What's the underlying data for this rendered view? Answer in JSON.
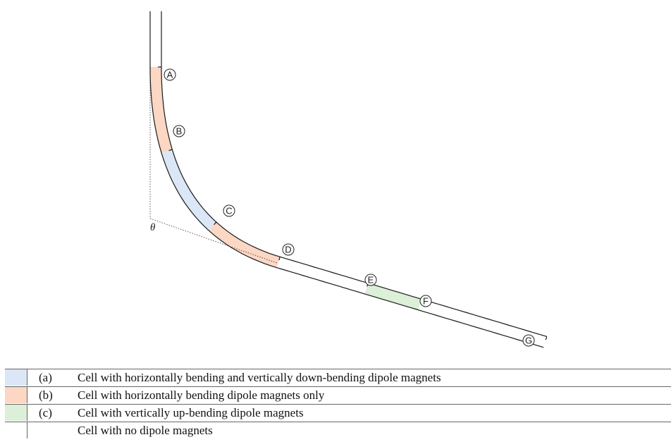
{
  "colors": {
    "cell_a": "#dbe7f6",
    "cell_b": "#fbd7c4",
    "cell_c": "#dcefd8",
    "cell_none": "#ffffff",
    "line": "#1a1a1a"
  },
  "points": [
    {
      "id": "A",
      "label": "A"
    },
    {
      "id": "B",
      "label": "B"
    },
    {
      "id": "C",
      "label": "C"
    },
    {
      "id": "D",
      "label": "D"
    },
    {
      "id": "E",
      "label": "E"
    },
    {
      "id": "F",
      "label": "F"
    },
    {
      "id": "G",
      "label": "G"
    }
  ],
  "angle_label": "θ",
  "legend": [
    {
      "swatch": "cell_a",
      "letter": "(a)",
      "text": "Cell with horizontally bending and vertically down-bending dipole magnets"
    },
    {
      "swatch": "cell_b",
      "letter": "(b)",
      "text": "Cell with horizontally bending dipole magnets only"
    },
    {
      "swatch": "cell_c",
      "letter": "(c)",
      "text": "Cell with vertically up-bending dipole magnets"
    },
    {
      "swatch": "cell_none",
      "letter": "",
      "text": "Cell with no dipole magnets"
    }
  ]
}
